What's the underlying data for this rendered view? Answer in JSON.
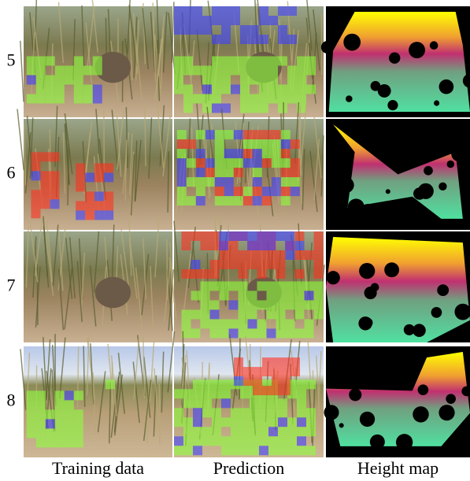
{
  "rows": [
    {
      "label": "5"
    },
    {
      "label": "6"
    },
    {
      "label": "7"
    },
    {
      "label": "8"
    }
  ],
  "columns": [
    "Training data",
    "Prediction",
    "Height map"
  ]
}
